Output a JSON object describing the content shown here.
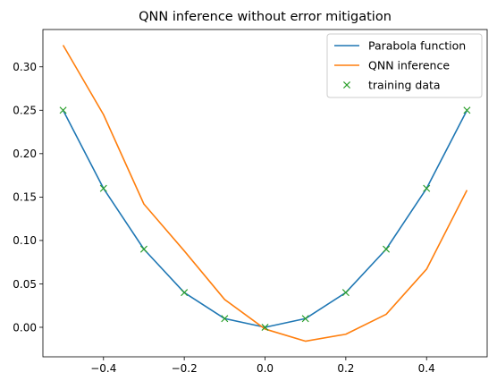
{
  "chart_data": {
    "type": "line",
    "title": "QNN inference without error mitigation",
    "xlabel": "",
    "ylabel": "",
    "xlim": [
      -0.55,
      0.55
    ],
    "ylim": [
      -0.034,
      0.343
    ],
    "xticks": [
      -0.4,
      -0.2,
      0.0,
      0.2,
      0.4
    ],
    "xtick_labels": [
      "−0.4",
      "−0.2",
      "0.0",
      "0.2",
      "0.4"
    ],
    "yticks": [
      0.0,
      0.05,
      0.1,
      0.15,
      0.2,
      0.25,
      0.3
    ],
    "ytick_labels": [
      "0.00",
      "0.05",
      "0.10",
      "0.15",
      "0.20",
      "0.25",
      "0.30"
    ],
    "grid": false,
    "legend_position": "top-right",
    "series": [
      {
        "name": "Parabola function",
        "style": "line",
        "color": "#1f77b4",
        "x": [
          -0.5,
          -0.4,
          -0.3,
          -0.2,
          -0.1,
          0.0,
          0.1,
          0.2,
          0.3,
          0.4,
          0.5
        ],
        "y": [
          0.25,
          0.16,
          0.09,
          0.04,
          0.01,
          0.0,
          0.01,
          0.04,
          0.09,
          0.16,
          0.25
        ]
      },
      {
        "name": "QNN inference",
        "style": "line",
        "color": "#ff7f0e",
        "x": [
          -0.5,
          -0.4,
          -0.3,
          -0.2,
          -0.1,
          0.0,
          0.1,
          0.2,
          0.3,
          0.4,
          0.5
        ],
        "y": [
          0.325,
          0.245,
          0.142,
          0.088,
          0.032,
          -0.002,
          -0.016,
          -0.008,
          0.015,
          0.067,
          0.158
        ]
      },
      {
        "name": "training data",
        "style": "marker-x",
        "color": "#2ca02c",
        "x": [
          -0.5,
          -0.4,
          -0.3,
          -0.2,
          -0.1,
          0.0,
          0.1,
          0.2,
          0.3,
          0.4,
          0.5
        ],
        "y": [
          0.25,
          0.16,
          0.09,
          0.04,
          0.01,
          0.0,
          0.01,
          0.04,
          0.09,
          0.16,
          0.25
        ]
      }
    ]
  }
}
